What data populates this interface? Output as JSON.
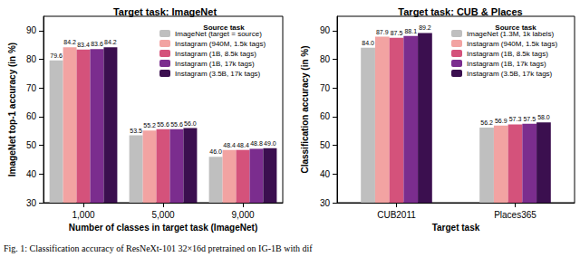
{
  "chart_data": [
    {
      "type": "bar",
      "title": "Target task: ImageNet",
      "xlabel": "Number of classes in target task (ImageNet)",
      "ylabel": "ImageNet top-1 accuracy (in %)",
      "categories": [
        "1,000",
        "5,000",
        "9,000"
      ],
      "series": [
        {
          "name": "ImageNet (target = source)",
          "color": "#bfbfbf",
          "values": [
            79.6,
            53.5,
            46.0
          ],
          "value_labels": [
            "79.6",
            "53.5",
            "46.0"
          ]
        },
        {
          "name": "Instagram (940M, 1.5k tags)",
          "color": "#f2a3a2",
          "values": [
            84.2,
            55.2,
            48.4
          ],
          "value_labels": [
            "84.2",
            "55.2",
            "48.4"
          ]
        },
        {
          "name": "Instagram (1B, 8.5k tags)",
          "color": "#d4527b",
          "values": [
            83.4,
            55.6,
            48.4
          ],
          "value_labels": [
            "83.4",
            "55.6",
            "48.4"
          ]
        },
        {
          "name": "Instagram (1B, 17k tags)",
          "color": "#7b2d8e",
          "values": [
            83.6,
            55.6,
            48.8
          ],
          "value_labels": [
            "83.6",
            "55.6",
            "48.8"
          ]
        },
        {
          "name": "Instagram (3.5B, 17k tags)",
          "color": "#3b0f4f",
          "values": [
            84.2,
            56.0,
            49.0
          ],
          "value_labels": [
            "84.2",
            "56.0",
            "49.0"
          ]
        }
      ],
      "ylim": [
        30,
        95
      ],
      "yticks": [
        30,
        40,
        50,
        60,
        70,
        80,
        90
      ],
      "grid": false,
      "legend": "upper right",
      "legend_title": "Source task",
      "data_labels": true
    },
    {
      "type": "bar",
      "title": "Target task: CUB & Places",
      "xlabel": "Target task",
      "ylabel": "Classification accuracy (in %)",
      "categories": [
        "CUB2011",
        "Places365"
      ],
      "series": [
        {
          "name": "ImageNet (1.3M, 1k labels)",
          "color": "#bfbfbf",
          "values": [
            84.0,
            56.2
          ],
          "value_labels": [
            "84.0",
            "56.2"
          ]
        },
        {
          "name": "Instagram (940M, 1.5k tags)",
          "color": "#f2a3a2",
          "values": [
            87.9,
            56.9
          ],
          "value_labels": [
            "87.9",
            "56.9"
          ]
        },
        {
          "name": "Instagram (1B, 8.5k tags)",
          "color": "#d4527b",
          "values": [
            87.5,
            57.3
          ],
          "value_labels": [
            "87.5",
            "57.3"
          ]
        },
        {
          "name": "Instagram (1B, 17k tags)",
          "color": "#7b2d8e",
          "values": [
            88.1,
            57.5
          ],
          "value_labels": [
            "88.1",
            "57.5"
          ]
        },
        {
          "name": "Instagram (3.5B, 17k tags)",
          "color": "#3b0f4f",
          "values": [
            89.2,
            58.0
          ],
          "value_labels": [
            "89.2",
            "58.0"
          ]
        }
      ],
      "ylim": [
        30,
        95
      ],
      "yticks": [
        30,
        40,
        50,
        60,
        70,
        80,
        90
      ],
      "grid": false,
      "legend": "upper right",
      "legend_title": "Source task",
      "data_labels": true
    }
  ],
  "caption": "Fig. 1: Classification accuracy of ResNeXt-101 32×16d pretrained on IG-1B with dif"
}
